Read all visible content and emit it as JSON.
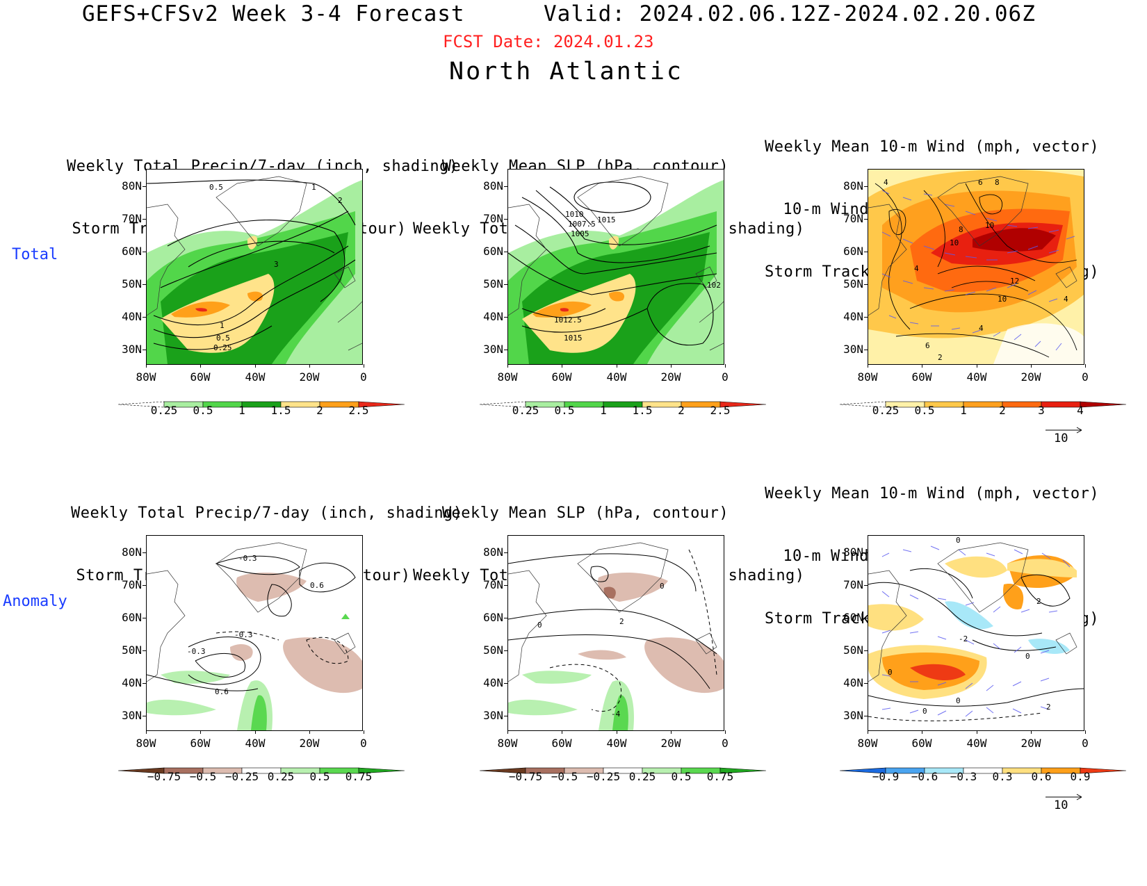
{
  "header": {
    "title_left": "GEFS+CFSv2 Week 3-4 Forecast",
    "title_right": "Valid: 2024.02.06.12Z-2024.02.20.06Z",
    "fcst_date": "FCST Date: 2024.01.23",
    "region": "North Atlantic"
  },
  "rows": {
    "total": "Total",
    "anomaly": "Anomaly"
  },
  "panel_titles": {
    "col1": [
      "Weekly Total Precip/7-day (inch, shading)",
      "Storm Track Density/7-day (contour)"
    ],
    "col2": [
      "Weekly Mean SLP (hPa, contour)",
      "Weekly Total Precip/7-day (inch, shading)"
    ],
    "col3": [
      "Weekly Mean 10-m Wind (mph, vector)",
      "10-m Wind Speed (mph, contour)",
      "Storm Track Density/7-day (shading)"
    ]
  },
  "axes": {
    "lat_ticks": [
      "80N",
      "70N",
      "60N",
      "50N",
      "40N",
      "30N"
    ],
    "lon_ticks": [
      "80W",
      "60W",
      "40W",
      "20W",
      "0"
    ]
  },
  "colorbars": {
    "precip_total": [
      "0.25",
      "0.5",
      "1",
      "1.5",
      "2",
      "2.5"
    ],
    "track_total": [
      "0.25",
      "0.5",
      "1",
      "2",
      "3",
      "4"
    ],
    "precip_anom": [
      "−0.75",
      "−0.5",
      "−0.25",
      "0.25",
      "0.5",
      "0.75"
    ],
    "track_anom": [
      "−0.9",
      "−0.6",
      "−0.3",
      "0.3",
      "0.6",
      "0.9"
    ],
    "precip_total_colors": [
      "#ffffff",
      "#a8eea0",
      "#52d64a",
      "#1aa11a",
      "#ffe38a",
      "#ffa01a",
      "#e8281a"
    ],
    "track_total_colors": [
      "#ffffff",
      "#fff1a8",
      "#ffc84a",
      "#ffa01e",
      "#ff6a10",
      "#e82010",
      "#b00000"
    ],
    "precip_anom_colors": [
      "#6a3a20",
      "#a87060",
      "#ddbcb0",
      "#ffffff",
      "#b8f0b0",
      "#5ad850",
      "#20a820"
    ],
    "track_anom_colors": [
      "#1a6ae0",
      "#4aa4f0",
      "#a8e8f8",
      "#ffffff",
      "#ffe080",
      "#ffa01a",
      "#ee3a14"
    ]
  },
  "vector_reference": "10",
  "contour_labels": {
    "p1": [
      "0.5",
      "1",
      "2",
      "3",
      "1",
      "0.5",
      "0.25"
    ],
    "p2": [
      "1010",
      "1007.5",
      "1005",
      "1015",
      "1012.5",
      "1015",
      "102"
    ],
    "p3": [
      "4",
      "6",
      "8",
      "10",
      "10",
      "8",
      "4",
      "12",
      "10",
      "4",
      "6",
      "2",
      "4"
    ],
    "p4": [
      "-0.3",
      "0.6",
      "-0.3",
      "-0.3",
      "0.6"
    ],
    "p5": [
      "0",
      "0",
      "2",
      "-4"
    ],
    "p6": [
      "0",
      "2",
      "-2",
      "0",
      "0",
      "2",
      "0",
      "0"
    ]
  }
}
